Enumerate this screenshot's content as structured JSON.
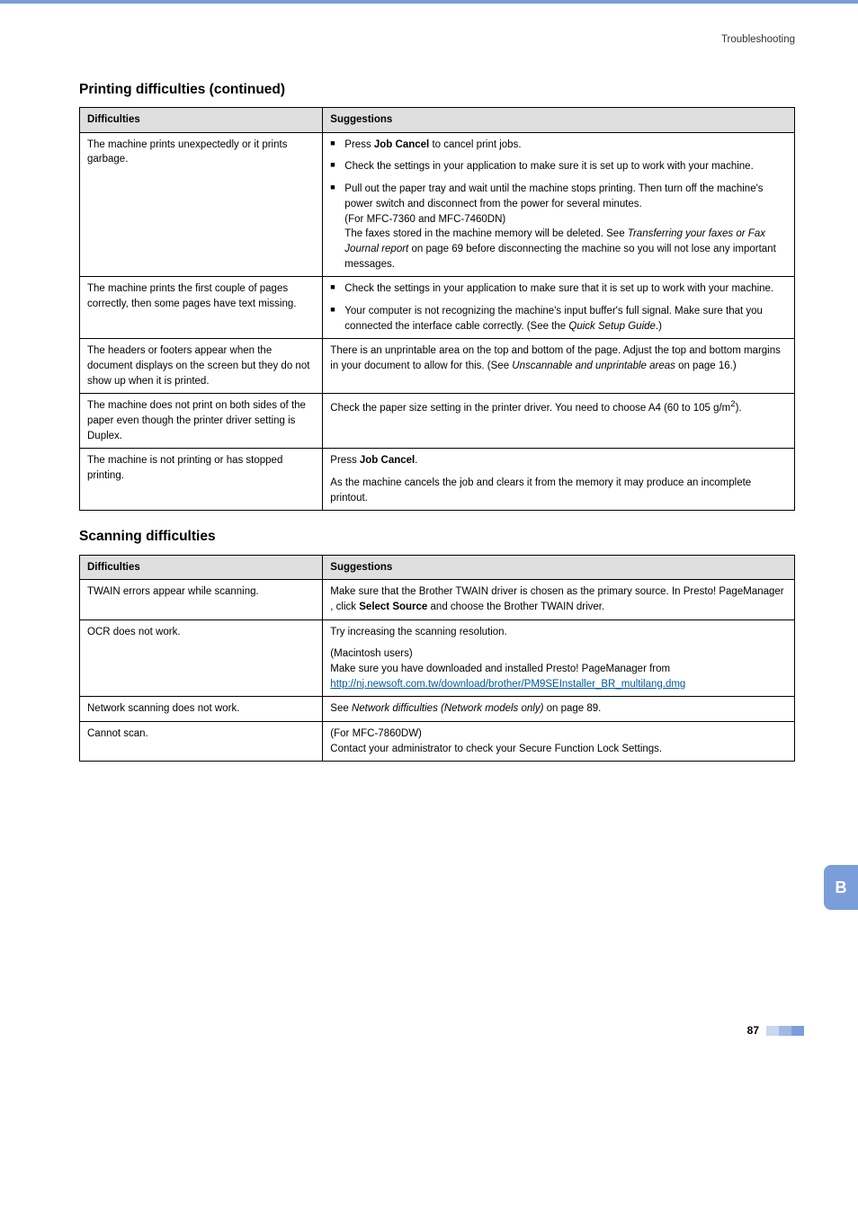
{
  "top_right": "Troubleshooting",
  "section1_heading": "Printing difficulties (continued)",
  "section2_heading": "Scanning difficulties",
  "table_headers": {
    "col1": "Difficulties",
    "col2": "Suggestions"
  },
  "printing": {
    "rows": [
      {
        "diff": "The machine prints unexpectedly or it prints garbage.",
        "bullets": [
          {
            "parts": [
              {
                "t": "Press "
              },
              {
                "t": "Job Cancel",
                "b": true
              },
              {
                "t": " to cancel print jobs."
              }
            ]
          },
          {
            "parts": [
              {
                "t": "Check the settings in your application to make sure it is set up to work with your machine."
              }
            ]
          },
          {
            "parts": [
              {
                "t": "Pull out the paper tray and wait until the machine stops printing. Then turn off the machine's power switch and disconnect from the power for several minutes."
              },
              {
                "br": true
              },
              {
                "t": "(For MFC-7360 and MFC-7460DN)"
              },
              {
                "br": true
              },
              {
                "t": "The faxes stored in the machine memory will be deleted. See "
              },
              {
                "t": "Transferring your faxes or Fax Journal report",
                "i": true
              },
              {
                "t": " on page 69 before disconnecting the machine so you will not lose any important messages."
              }
            ]
          }
        ]
      },
      {
        "diff": "The machine prints the first couple of pages correctly, then some pages have text missing.",
        "bullets": [
          {
            "parts": [
              {
                "t": "Check the settings in your application to make sure that it is set up to work with your machine."
              }
            ]
          },
          {
            "parts": [
              {
                "t": "Your computer is not recognizing the machine's input buffer's full signal. Make sure that you connected the interface cable correctly. (See the "
              },
              {
                "t": "Quick Setup Guide",
                "i": true
              },
              {
                "t": ".)"
              }
            ]
          }
        ]
      },
      {
        "diff": "The headers or footers appear when the document displays on the screen but they do not show up when it is printed.",
        "plain": {
          "parts": [
            {
              "t": "There is an unprintable area on the top and bottom of the page. Adjust the top and bottom margins in your document to allow for this. (See "
            },
            {
              "t": "Unscannable and unprintable areas",
              "i": true
            },
            {
              "t": " on page 16.)"
            }
          ]
        }
      },
      {
        "diff": "The machine does not print on both sides of the paper even though the printer driver setting is Duplex.",
        "plain": {
          "parts": [
            {
              "t": "Check the paper size setting in the printer driver. You need to choose A4 (60 to 105 g/m"
            },
            {
              "t": "2",
              "sup": true
            },
            {
              "t": ")."
            }
          ]
        }
      },
      {
        "diff": "The machine is not printing or has stopped printing.",
        "plain_multi": [
          {
            "parts": [
              {
                "t": "Press "
              },
              {
                "t": "Job Cancel",
                "b": true
              },
              {
                "t": "."
              }
            ]
          },
          {
            "parts": [
              {
                "t": "As the machine cancels the job and clears it from the memory it may produce an incomplete printout."
              }
            ]
          }
        ]
      }
    ]
  },
  "scanning": {
    "rows": [
      {
        "diff": "TWAIN errors appear while scanning.",
        "plain": {
          "parts": [
            {
              "t": "Make sure that the Brother TWAIN driver is chosen as the primary source. In Presto! PageManager , click "
            },
            {
              "t": "Select Source",
              "b": true
            },
            {
              "t": " and choose the Brother TWAIN driver."
            }
          ]
        }
      },
      {
        "diff": "OCR does not work.",
        "plain_multi": [
          {
            "parts": [
              {
                "t": "Try increasing the scanning resolution."
              }
            ]
          },
          {
            "parts": [
              {
                "t": "(Macintosh users)"
              },
              {
                "br": true
              },
              {
                "t": "Make sure you have downloaded and installed Presto! PageManager from "
              },
              {
                "t": "http://nj.newsoft.com.tw/download/brother/PM9SEInstaller_BR_multilang.dmg",
                "link": true
              }
            ]
          }
        ]
      },
      {
        "diff": "Network scanning does not work.",
        "plain": {
          "parts": [
            {
              "t": "See "
            },
            {
              "t": "Network difficulties (Network models only)",
              "i": true
            },
            {
              "t": " on page 89."
            }
          ]
        }
      },
      {
        "diff": "Cannot scan.",
        "plain": {
          "parts": [
            {
              "t": "(For MFC-7860DW)"
            },
            {
              "br": true
            },
            {
              "t": "Contact your administrator to check your Secure Function Lock Settings."
            }
          ]
        }
      }
    ]
  },
  "sidebar_letter": "B",
  "page_number": "87"
}
